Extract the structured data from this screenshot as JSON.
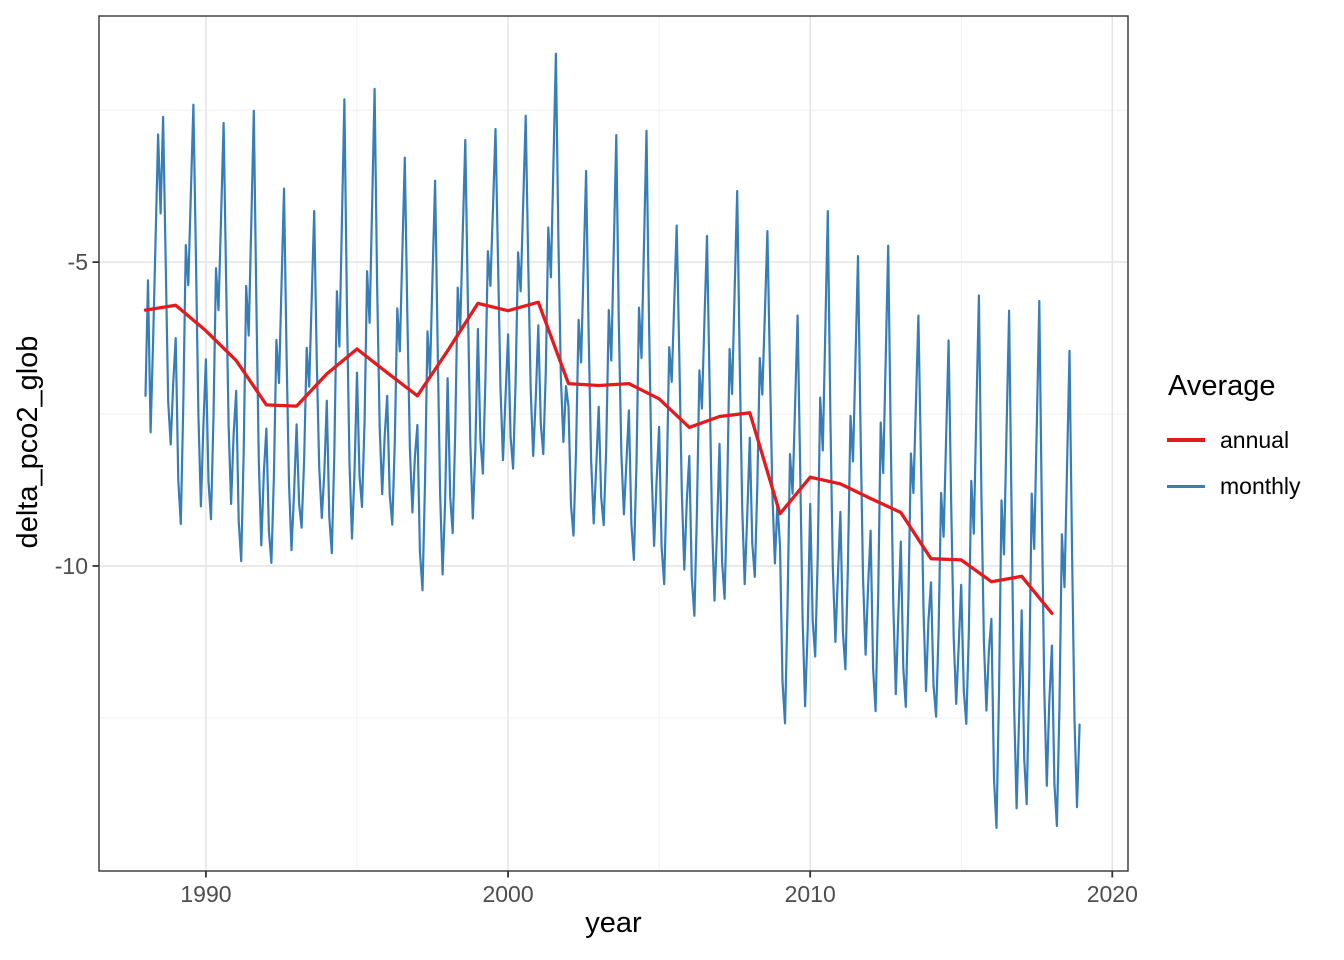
{
  "axis_titles": {
    "x": "year",
    "y": "delta_pco2_glob"
  },
  "legend": {
    "title": "Average",
    "items": [
      {
        "label": "annual",
        "color": "#e41a1c"
      },
      {
        "label": "monthly",
        "color": "#377eb8"
      }
    ]
  },
  "colors": {
    "annual_line": "#e41a1c",
    "monthly_line": "#377eb8",
    "panel_border": "#333333",
    "tick_text": "#4d4d4d",
    "grid_major": "#e4e4e4",
    "grid_minor": "#f0f0f0",
    "background": "#ffffff"
  },
  "chart_data": {
    "type": "line",
    "title": "",
    "xlabel": "year",
    "ylabel": "delta_pco2_glob",
    "xlim": [
      1986.46,
      2020.52
    ],
    "ylim": [
      -15.02,
      -0.95
    ],
    "x_ticks": [
      1990,
      2000,
      2010,
      2020
    ],
    "x_tick_labels": [
      "1990",
      "2000",
      "2010",
      "2020"
    ],
    "x_minor": [
      1995,
      2005,
      2015
    ],
    "y_ticks": [
      -5,
      -10
    ],
    "y_tick_labels": [
      "-5",
      "-10"
    ],
    "y_minor": [
      -2.5,
      -7.5,
      -12.5
    ],
    "grid": "major+minor",
    "legend_position": "right",
    "legend_title": "Average",
    "series": [
      {
        "name": "monthly",
        "color": "#377eb8",
        "x_start": 1988.0,
        "x_step": 0.0833333,
        "values": [
          -7.2,
          -5.3,
          -7.8,
          -6.3,
          -4.6,
          -2.9,
          -4.2,
          -2.61,
          -5.0,
          -7.3,
          -8.0,
          -7.0,
          -6.25,
          -8.59,
          -9.31,
          -7.33,
          -4.72,
          -5.38,
          -3.9,
          -2.41,
          -4.89,
          -7.51,
          -9.02,
          -7.69,
          -6.6,
          -8.61,
          -9.23,
          -7.53,
          -5.1,
          -5.79,
          -4.25,
          -2.71,
          -5.28,
          -7.68,
          -8.98,
          -7.84,
          -7.12,
          -9.26,
          -9.92,
          -8.11,
          -5.39,
          -6.21,
          -4.36,
          -2.51,
          -5.59,
          -8.27,
          -9.66,
          -8.44,
          -7.74,
          -9.43,
          -9.95,
          -8.52,
          -6.28,
          -6.99,
          -5.39,
          -3.79,
          -6.46,
          -8.65,
          -9.74,
          -8.78,
          -7.67,
          -8.97,
          -9.37,
          -8.27,
          -6.41,
          -7.05,
          -5.6,
          -4.16,
          -6.57,
          -8.37,
          -9.21,
          -8.47,
          -7.28,
          -9.2,
          -9.79,
          -8.17,
          -5.48,
          -6.39,
          -4.35,
          -2.32,
          -5.71,
          -8.32,
          -9.55,
          -8.46,
          -6.82,
          -8.51,
          -9.03,
          -7.6,
          -5.15,
          -6.0,
          -4.08,
          -2.15,
          -5.36,
          -7.73,
          -8.82,
          -7.86,
          -7.2,
          -8.82,
          -9.32,
          -7.95,
          -5.76,
          -6.47,
          -4.87,
          -3.28,
          -5.94,
          -8.07,
          -9.12,
          -8.2,
          -7.68,
          -9.76,
          -10.4,
          -8.64,
          -6.14,
          -6.85,
          -5.25,
          -3.66,
          -6.32,
          -8.8,
          -10.14,
          -8.96,
          -6.91,
          -8.86,
          -9.46,
          -7.81,
          -5.42,
          -6.11,
          -4.55,
          -2.99,
          -5.59,
          -7.96,
          -9.22,
          -8.11,
          -6.1,
          -7.92,
          -8.48,
          -6.94,
          -4.82,
          -5.39,
          -4.1,
          -2.81,
          -4.96,
          -7.08,
          -8.26,
          -7.22,
          -6.19,
          -7.88,
          -8.4,
          -6.97,
          -4.84,
          -5.48,
          -4.03,
          -2.59,
          -5.0,
          -7.1,
          -8.19,
          -7.23,
          -6.04,
          -7.66,
          -8.16,
          -6.79,
          -4.43,
          -5.25,
          -3.41,
          -1.57,
          -4.64,
          -6.91,
          -7.96,
          -7.04,
          -7.38,
          -9.0,
          -9.5,
          -8.13,
          -5.95,
          -6.65,
          -5.08,
          -3.5,
          -6.13,
          -8.25,
          -9.3,
          -8.38,
          -7.38,
          -8.87,
          -9.33,
          -8.07,
          -5.79,
          -6.62,
          -4.76,
          -2.91,
          -6.0,
          -8.18,
          -9.15,
          -8.3,
          -7.44,
          -9.32,
          -9.9,
          -8.31,
          -5.75,
          -6.58,
          -4.71,
          -2.84,
          -5.96,
          -8.45,
          -9.67,
          -8.6,
          -7.71,
          -9.69,
          -10.3,
          -8.62,
          -6.4,
          -6.97,
          -5.68,
          -4.4,
          -6.54,
          -8.78,
          -10.06,
          -8.93,
          -8.19,
          -10.2,
          -10.82,
          -9.12,
          -6.78,
          -7.41,
          -5.99,
          -4.57,
          -6.93,
          -9.27,
          -10.57,
          -9.43,
          -7.99,
          -9.94,
          -10.54,
          -8.89,
          -6.43,
          -7.17,
          -5.5,
          -3.83,
          -6.61,
          -9.04,
          -10.3,
          -9.19,
          -7.89,
          -9.64,
          -10.18,
          -8.7,
          -6.58,
          -7.18,
          -5.84,
          -4.49,
          -6.73,
          -8.83,
          -9.96,
          -8.97,
          -9.66,
          -11.9,
          -12.59,
          -10.69,
          -8.16,
          -8.81,
          -7.35,
          -5.88,
          -8.33,
          -10.87,
          -12.31,
          -11.04,
          -8.98,
          -10.9,
          -11.49,
          -9.87,
          -7.23,
          -8.1,
          -6.13,
          -4.16,
          -7.45,
          -10.02,
          -11.25,
          -10.16,
          -9.11,
          -11.09,
          -11.7,
          -10.02,
          -7.53,
          -8.28,
          -6.59,
          -4.9,
          -7.71,
          -10.18,
          -11.46,
          -10.33,
          -9.42,
          -11.69,
          -12.39,
          -10.47,
          -7.64,
          -8.47,
          -6.6,
          -4.73,
          -7.85,
          -10.64,
          -12.11,
          -10.82,
          -9.6,
          -11.68,
          -12.32,
          -10.56,
          -8.15,
          -8.8,
          -7.34,
          -5.88,
          -8.31,
          -10.72,
          -12.06,
          -10.88,
          -10.27,
          -11.96,
          -12.48,
          -11.05,
          -8.8,
          -9.52,
          -7.91,
          -6.29,
          -8.98,
          -11.18,
          -12.27,
          -11.31,
          -10.31,
          -12.06,
          -12.6,
          -11.12,
          -8.6,
          -9.47,
          -7.51,
          -5.55,
          -8.81,
          -11.25,
          -12.38,
          -11.39,
          -10.87,
          -13.5,
          -14.31,
          -12.08,
          -8.92,
          -9.81,
          -7.81,
          -5.8,
          -9.15,
          -12.29,
          -13.99,
          -12.49,
          -10.73,
          -13.17,
          -13.92,
          -11.86,
          -8.81,
          -9.72,
          -7.68,
          -5.64,
          -9.04,
          -12.05,
          -13.62,
          -12.23,
          -11.31,
          -13.58,
          -14.28,
          -12.36,
          -9.48,
          -10.35,
          -8.4,
          -6.46,
          -9.7,
          -12.53,
          -13.97,
          -12.61
        ]
      },
      {
        "name": "annual",
        "color": "#e41a1c",
        "x_start": 1988,
        "x_step": 1,
        "values": [
          -5.79,
          -5.71,
          -6.13,
          -6.62,
          -7.35,
          -7.37,
          -6.84,
          -6.43,
          -6.82,
          -7.2,
          -6.46,
          -5.68,
          -5.8,
          -5.66,
          -7.0,
          -7.03,
          -7.0,
          -7.25,
          -7.72,
          -7.54,
          -7.48,
          -9.14,
          -8.54,
          -8.65,
          -8.89,
          -9.12,
          -9.88,
          -9.9,
          -10.26,
          -10.17,
          -10.78
        ]
      }
    ]
  }
}
